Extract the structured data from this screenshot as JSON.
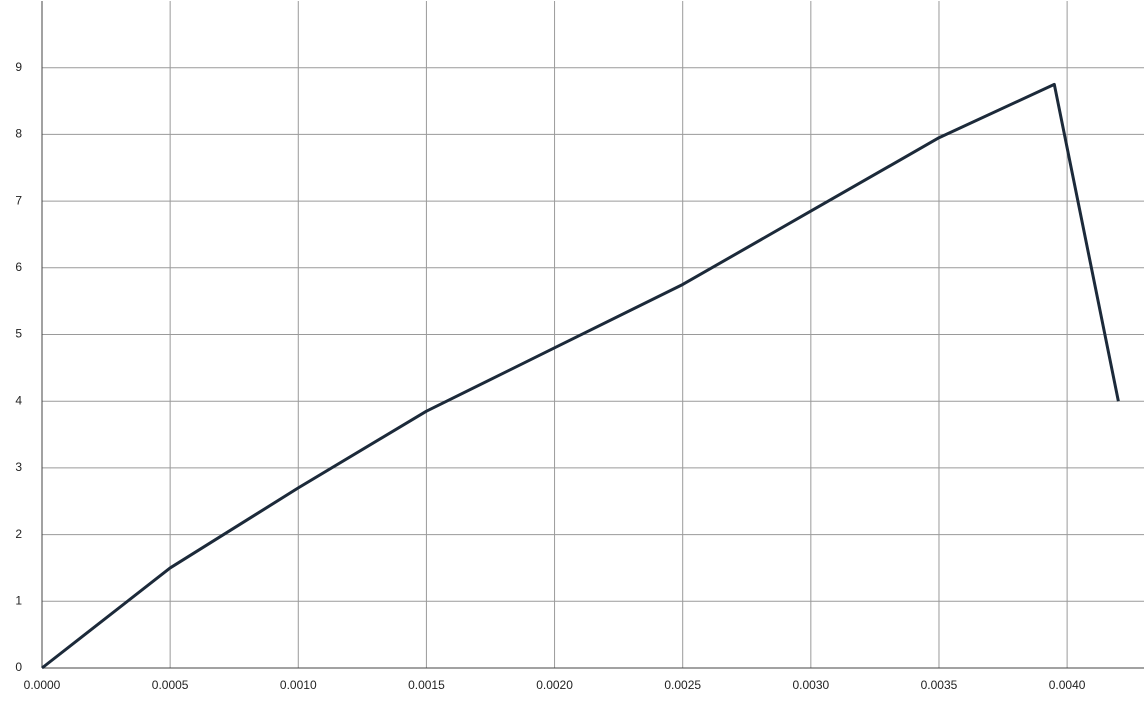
{
  "chart_data": {
    "type": "line",
    "x": [
      0,
      0.0005,
      0.001,
      0.0015,
      0.002,
      0.0025,
      0.003,
      0.0035,
      0.00395,
      0.0042
    ],
    "series": [
      {
        "color": "#1c2a3a",
        "values": [
          0,
          1.5,
          2.7,
          3.85,
          4.8,
          5.75,
          6.85,
          7.95,
          8.75,
          4.0
        ]
      }
    ],
    "xlim": [
      0,
      0.0043
    ],
    "ylim": [
      0,
      10
    ],
    "xticks": [
      {
        "value": 0,
        "label": "0.0000"
      },
      {
        "value": 0.0005,
        "label": "0.0005"
      },
      {
        "value": 0.001,
        "label": "0.0010"
      },
      {
        "value": 0.0015,
        "label": "0.0015"
      },
      {
        "value": 0.002,
        "label": "0.0020"
      },
      {
        "value": 0.0025,
        "label": "0.0025"
      },
      {
        "value": 0.003,
        "label": "0.0030"
      },
      {
        "value": 0.0035,
        "label": "0.0035"
      },
      {
        "value": 0.004,
        "label": "0.0040"
      }
    ],
    "yticks": [
      0,
      1,
      2,
      3,
      4,
      5,
      6,
      7,
      8,
      9
    ],
    "grid": true
  }
}
